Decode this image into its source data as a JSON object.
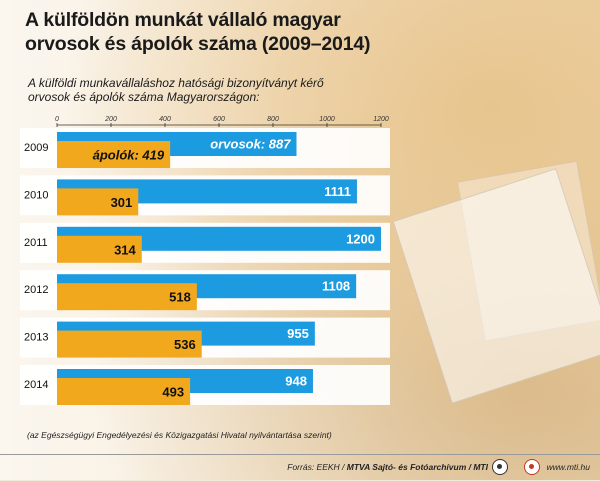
{
  "title": "A külföldön munkát vállaló magyar orvosok és ápolók száma (2009–2014)",
  "subtitle": "A külföldi munkavállaláshoz hatósági bizonyítványt kérő orvosok és ápolók száma Magyarországon:",
  "note": "(az Egészségügyi Engedélyezési és Közigazgatási Hivatal nyilvántartása szerint)",
  "footer": {
    "source_prefix": "Forrás: EEKH / ",
    "source_agency": "MTVA Sajtó- és Fotóarchívum / MTI",
    "site": "www.mti.hu"
  },
  "colors": {
    "orvosok": "#1d9be0",
    "apolok": "#f2a81d",
    "band": "#ffffff"
  },
  "chart_data": {
    "type": "bar",
    "orientation": "horizontal",
    "categories": [
      "2009",
      "2010",
      "2011",
      "2012",
      "2013",
      "2014"
    ],
    "series": [
      {
        "name": "orvosok",
        "values": [
          887,
          1111,
          1200,
          1108,
          955,
          948
        ]
      },
      {
        "name": "ápolók",
        "values": [
          419,
          301,
          314,
          518,
          536,
          493
        ]
      }
    ],
    "xticks": [
      0,
      200,
      400,
      600,
      800,
      1000,
      1200
    ],
    "xlim": [
      0,
      1200
    ],
    "label_prefix_first_row": {
      "orvosok": "orvosok:",
      "ápolók": "ápolók:"
    },
    "legend": "inline-first-row",
    "grid": false
  }
}
